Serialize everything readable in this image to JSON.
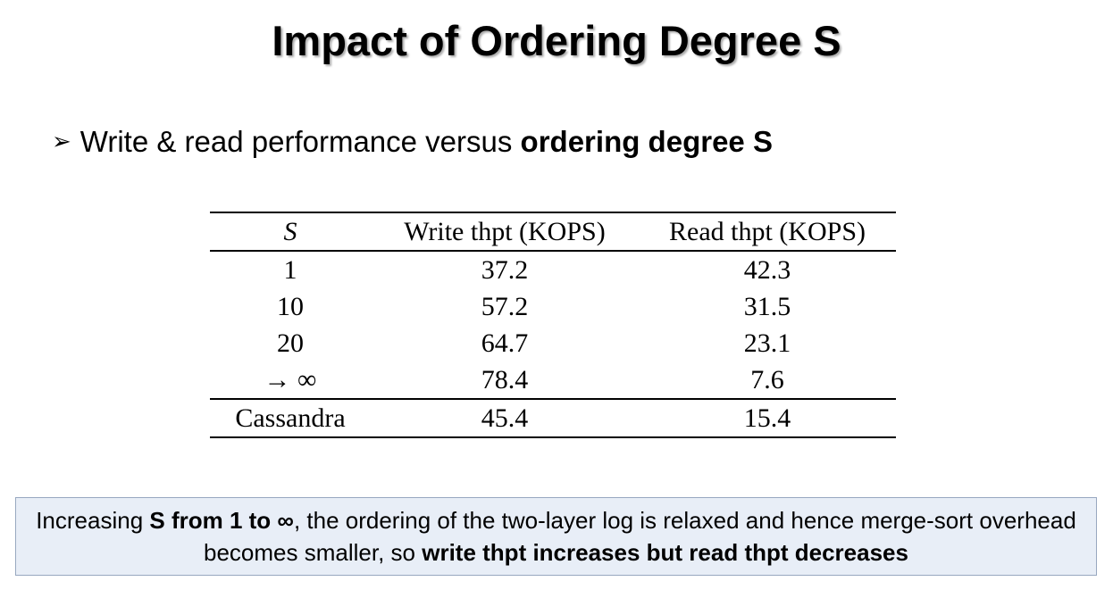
{
  "title": "Impact of Ordering Degree S",
  "bullet": {
    "text": "Write & read performance versus ",
    "bold": "ordering degree S"
  },
  "table": {
    "header": [
      "S",
      "Write thpt (KOPS)",
      "Read thpt (KOPS)"
    ],
    "rows": [
      [
        "1",
        37.2,
        42.3
      ],
      [
        "10",
        57.2,
        31.5
      ],
      [
        "20",
        64.7,
        23.1
      ],
      [
        "→ ∞",
        78.4,
        7.6
      ]
    ],
    "footer": [
      "Cassandra",
      45.4,
      15.4
    ]
  },
  "note": {
    "parts": [
      {
        "text": "Increasing ",
        "bold": false
      },
      {
        "text": "S from 1 to ∞",
        "bold": true
      },
      {
        "text": ", the ordering of the two-layer log is relaxed and hence merge-sort overhead becomes smaller, so ",
        "bold": false
      },
      {
        "text": "write thpt increases but read thpt decreases",
        "bold": true
      }
    ]
  }
}
